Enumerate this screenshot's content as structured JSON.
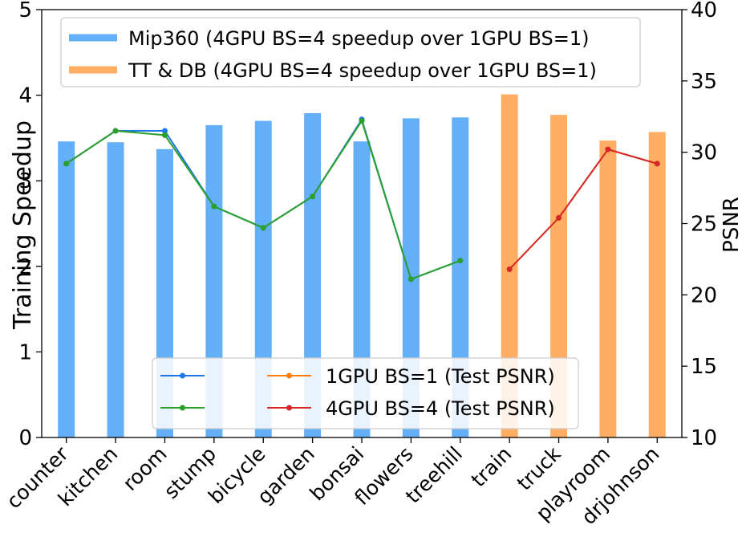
{
  "chart_data": {
    "type": "bar",
    "title": "",
    "xlabel": "",
    "ylabel": "Training Speedup",
    "y2label": "PSNR",
    "ylim": [
      0,
      5
    ],
    "y2lim": [
      10,
      40
    ],
    "yticks": [
      0,
      1,
      2,
      3,
      4,
      5
    ],
    "y2ticks": [
      10,
      15,
      20,
      25,
      30,
      35,
      40
    ],
    "grid": false,
    "categories": [
      "counter",
      "kitchen",
      "room",
      "stump",
      "bicycle",
      "garden",
      "bonsai",
      "flowers",
      "treehill",
      "train",
      "truck",
      "playroom",
      "drjohnson"
    ],
    "bar_series": [
      {
        "name": "Mip360 (4GPU BS=4 speedup over 1GPU BS=1)",
        "color": "#64b0f8",
        "categories": [
          "counter",
          "kitchen",
          "room",
          "stump",
          "bicycle",
          "garden",
          "bonsai",
          "flowers",
          "treehill"
        ],
        "values": [
          3.46,
          3.45,
          3.37,
          3.65,
          3.7,
          3.79,
          3.46,
          3.73,
          3.74
        ]
      },
      {
        "name": "TT & DB (4GPU BS=4 speedup over 1GPU BS=1)",
        "color": "#ffae64",
        "categories": [
          "train",
          "truck",
          "playroom",
          "drjohnson"
        ],
        "values": [
          4.01,
          3.77,
          3.47,
          3.57
        ]
      }
    ],
    "line_series": [
      {
        "name": "",
        "color": "#1f77e6",
        "axis": "right",
        "categories": [
          "counter",
          "kitchen",
          "room",
          "stump",
          "bicycle",
          "garden",
          "bonsai",
          "flowers",
          "treehill"
        ],
        "values": [
          29.2,
          31.5,
          31.5,
          26.2,
          24.7,
          26.9,
          32.3,
          21.1,
          22.4
        ]
      },
      {
        "name": "",
        "color": "#2ca02c",
        "axis": "right",
        "categories": [
          "counter",
          "kitchen",
          "room",
          "stump",
          "bicycle",
          "garden",
          "bonsai",
          "flowers",
          "treehill"
        ],
        "values": [
          29.2,
          31.5,
          31.2,
          26.2,
          24.7,
          26.9,
          32.2,
          21.1,
          22.4
        ]
      },
      {
        "name": "1GPU BS=1 (Test PSNR)",
        "color": "#ff7f0e",
        "axis": "right",
        "categories": [
          "train",
          "truck",
          "playroom",
          "drjohnson"
        ],
        "values": [
          21.8,
          25.4,
          30.2,
          29.2
        ]
      },
      {
        "name": "4GPU BS=4 (Test PSNR)",
        "color": "#d62728",
        "axis": "right",
        "categories": [
          "train",
          "truck",
          "playroom",
          "drjohnson"
        ],
        "values": [
          21.8,
          25.4,
          30.2,
          29.2
        ]
      }
    ],
    "legends": [
      {
        "placement": "top-left",
        "entries": [
          "Mip360 (4GPU BS=4 speedup over 1GPU BS=1)",
          "TT & DB (4GPU BS=4 speedup over 1GPU BS=1)"
        ]
      },
      {
        "placement": "lower-center",
        "entries": [
          "",
          "",
          "1GPU BS=1 (Test PSNR)",
          "4GPU BS=4 (Test PSNR)"
        ]
      }
    ]
  }
}
